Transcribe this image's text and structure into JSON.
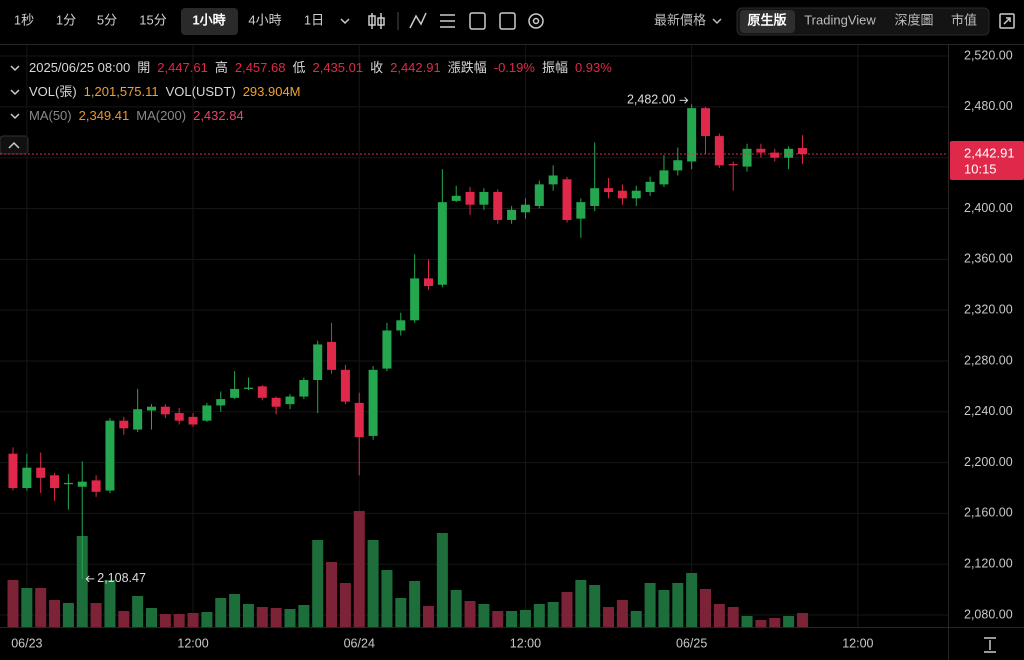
{
  "toolbar": {
    "intervals": [
      "1秒",
      "1分",
      "5分",
      "15分",
      "1小時",
      "4小時",
      "1日"
    ],
    "selected_interval": "1小時",
    "price_source": "最新價格",
    "views": [
      "原生版",
      "TradingView",
      "深度圖",
      "市值"
    ],
    "selected_view": "原生版"
  },
  "legend": {
    "rows": [
      [
        {
          "text": "2025/06/25 08:00",
          "color": "#d8d8d8"
        },
        {
          "text": "開",
          "color": "#d8d8d8"
        },
        {
          "text": "2,447.61",
          "color": "#e0294a"
        },
        {
          "text": "高",
          "color": "#d8d8d8"
        },
        {
          "text": "2,457.68",
          "color": "#e0294a"
        },
        {
          "text": "低",
          "color": "#d8d8d8"
        },
        {
          "text": "2,435.01",
          "color": "#e0294a"
        },
        {
          "text": "收",
          "color": "#d8d8d8"
        },
        {
          "text": "2,442.91",
          "color": "#e0294a"
        },
        {
          "text": "漲跌幅",
          "color": "#d8d8d8"
        },
        {
          "text": "-0.19%",
          "color": "#e0294a"
        },
        {
          "text": "振幅",
          "color": "#d8d8d8"
        },
        {
          "text": "0.93%",
          "color": "#e0294a"
        }
      ],
      [
        {
          "text": "VOL(張)",
          "color": "#d8d8d8"
        },
        {
          "text": "1,201,575.11",
          "color": "#f0a030"
        },
        {
          "text": "VOL(USDT)",
          "color": "#d8d8d8"
        },
        {
          "text": "293.904M",
          "color": "#f0a030"
        }
      ],
      [
        {
          "text": "MA(50)",
          "color": "#8a8a8a"
        },
        {
          "text": "2,349.41",
          "color": "#e8962e"
        },
        {
          "text": "MA(200)",
          "color": "#8a8a8a"
        },
        {
          "text": "2,432.84",
          "color": "#e04a6a"
        }
      ]
    ]
  },
  "chart_data": {
    "type": "candlestick",
    "categories": [
      null,
      "06/23",
      null,
      null,
      null,
      null,
      null,
      null,
      null,
      null,
      null,
      null,
      null,
      "12:00",
      null,
      null,
      null,
      null,
      null,
      null,
      null,
      null,
      null,
      null,
      null,
      "06/24",
      null,
      null,
      null,
      null,
      null,
      null,
      null,
      null,
      null,
      null,
      null,
      "12:00",
      null,
      null,
      null,
      null,
      null,
      null,
      null,
      null,
      null,
      null,
      null,
      "06/25",
      null,
      null,
      null,
      null,
      null,
      null,
      null,
      null,
      null,
      null,
      null,
      "12:00"
    ],
    "open": [
      2207,
      2180,
      2196,
      2190,
      2183,
      2181,
      2186,
      2178,
      2233,
      2226,
      2241,
      2244,
      2239,
      2236,
      2233,
      2245,
      2251,
      2258,
      2260,
      2251,
      2246,
      2252,
      2265,
      2295,
      2273,
      2247,
      2221,
      2274,
      2304,
      2312,
      2345,
      2340,
      2406,
      2413,
      2403,
      2413,
      2391,
      2397,
      2402,
      2419,
      2423,
      2392,
      2402,
      2416,
      2414,
      2408,
      2413,
      2419,
      2430,
      2437,
      2479,
      2457,
      2435,
      2433,
      2447,
      2444,
      2440,
      2447.61,
      null,
      null,
      null,
      null
    ],
    "high": [
      2212,
      2207,
      2208,
      2192,
      2191,
      2201,
      2190,
      2235,
      2236,
      2258,
      2246,
      2246,
      2243,
      2239,
      2247,
      2256,
      2272,
      2267,
      2261,
      2252,
      2254,
      2267,
      2296,
      2310,
      2277,
      2255,
      2276,
      2310,
      2318,
      2364,
      2360,
      2431,
      2418,
      2417,
      2416,
      2415,
      2402,
      2408,
      2422,
      2434,
      2425,
      2408,
      2452,
      2424,
      2419,
      2418,
      2425,
      2442,
      2448,
      2482,
      2480,
      2459,
      2437,
      2451,
      2451,
      2447,
      2449,
      2457.68,
      null,
      null,
      null,
      null
    ],
    "low": [
      2178,
      2178,
      2176,
      2170,
      2163,
      2108.47,
      2173,
      2176,
      2222,
      2224,
      2226,
      2235,
      2230,
      2228,
      2232,
      2240,
      2250,
      2257,
      2249,
      2238,
      2242,
      2250,
      2239,
      2270,
      2246,
      2190,
      2218,
      2272,
      2300,
      2310,
      2336,
      2338,
      2405,
      2395,
      2399,
      2388,
      2388,
      2392,
      2400,
      2414,
      2389,
      2377,
      2398,
      2408,
      2403,
      2402,
      2410,
      2417,
      2426,
      2431,
      2443,
      2432,
      2414,
      2429,
      2440,
      2437,
      2431,
      2435.01,
      null,
      null,
      null,
      null
    ],
    "close": [
      2180,
      2196,
      2188,
      2180,
      2184,
      2185,
      2177,
      2233,
      2227,
      2242,
      2244,
      2238,
      2233,
      2230,
      2245,
      2250,
      2258,
      2259,
      2251,
      2244,
      2252,
      2265,
      2293,
      2273,
      2248,
      2220,
      2273,
      2304,
      2312,
      2345,
      2339,
      2405,
      2410,
      2403,
      2413,
      2391,
      2399,
      2403,
      2419,
      2426,
      2391,
      2405,
      2416,
      2413,
      2408,
      2414,
      2421,
      2430,
      2438,
      2479,
      2457,
      2434,
      2434,
      2447,
      2444,
      2440,
      2447,
      2442.91,
      null,
      null,
      null,
      null
    ],
    "volume": [
      4042000,
      3354000,
      3354000,
      2322000,
      2064000,
      7826000,
      2064000,
      4042000,
      1376000,
      2666000,
      1634000,
      1118000,
      1118000,
      1204000,
      1290000,
      2494000,
      2838000,
      1978000,
      1720000,
      1634000,
      1548000,
      1892000,
      7482000,
      5590000,
      3784000,
      9976000,
      7482000,
      4902000,
      2494000,
      3956000,
      1806000,
      8084000,
      3182000,
      2236000,
      1978000,
      1376000,
      1376000,
      1462000,
      1978000,
      2150000,
      3010000,
      4042000,
      3612000,
      1720000,
      2322000,
      1376000,
      3784000,
      3182000,
      3784000,
      4644000,
      3268000,
      1978000,
      1720000,
      946000,
      602000,
      774000,
      946000,
      1201575.11,
      null,
      null,
      null,
      null
    ],
    "up_color": "#25a750",
    "down_color": "#e0294a",
    "up_volume_color": "#1e6e3c",
    "down_volume_color": "#7c2338",
    "ylim": [
      2070.6,
      2528.7
    ],
    "yticks": [
      {
        "value": 2520,
        "label": "2,520.00"
      },
      {
        "value": 2480,
        "label": "2,480.00"
      },
      {
        "value": 2440,
        "label": "2,440.00"
      },
      {
        "value": 2400,
        "label": "2,400.00"
      },
      {
        "value": 2360,
        "label": "2,360.00"
      },
      {
        "value": 2320,
        "label": "2,320.00"
      },
      {
        "value": 2280,
        "label": "2,280.00"
      },
      {
        "value": 2240,
        "label": "2,240.00"
      },
      {
        "value": 2200,
        "label": "2,200.00"
      },
      {
        "value": 2160,
        "label": "2,160.00"
      },
      {
        "value": 2120,
        "label": "2,120.00"
      },
      {
        "value": 2080,
        "label": "2,080.00"
      }
    ],
    "grid": true,
    "high_label": "2,482.00",
    "low_label": "2,108.47",
    "last_price_label": {
      "price": "2,442.91",
      "countdown": "10:15"
    }
  }
}
